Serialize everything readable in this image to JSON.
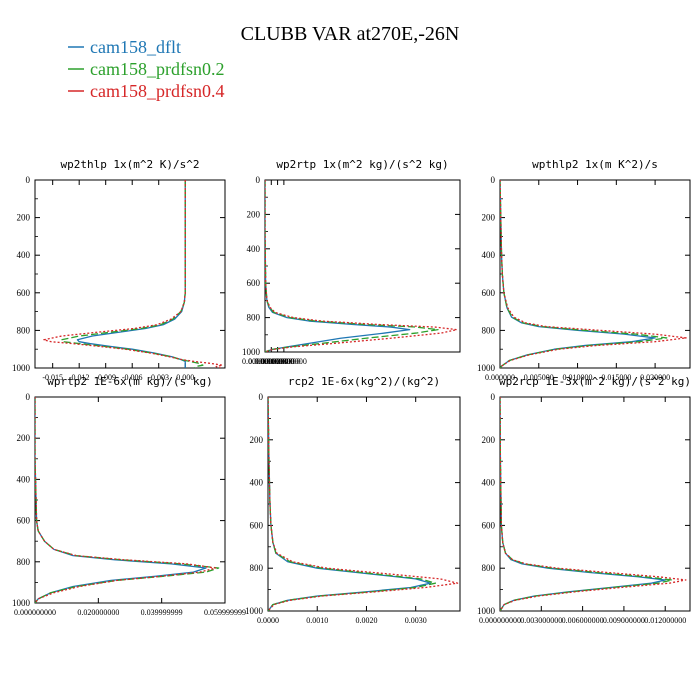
{
  "title": "CLUBB VAR at270E,-26N",
  "legend": [
    {
      "name": "cam158_dflt",
      "color": "#1f77b4",
      "dash": "solid"
    },
    {
      "name": "cam158_prdfsn0.2",
      "color": "#2ca02c",
      "dash": "dashed"
    },
    {
      "name": "cam158_prdfsn0.4",
      "color": "#d62728",
      "dash": "dotted"
    }
  ],
  "chart_data": [
    {
      "type": "line",
      "title": "wp2thlp  1x(m^2 K)/s^2",
      "xlim": [
        -0.017,
        0.0045
      ],
      "ylim": [
        1000,
        0
      ],
      "xticks": [
        "-0.015",
        "-0.012",
        "-0.009",
        "-0.006",
        "-0.003",
        "0.000"
      ],
      "xtick_values": [
        -0.015,
        -0.012,
        -0.009,
        -0.006,
        -0.003,
        0.0
      ],
      "yticks": [
        "0",
        "200",
        "400",
        "600",
        "800",
        "1000"
      ],
      "ytick_values": [
        0,
        200,
        400,
        600,
        800,
        1000
      ],
      "y": [
        0,
        300,
        600,
        650,
        700,
        740,
        770,
        790,
        810,
        830,
        850,
        860,
        870,
        885,
        900,
        920,
        940,
        955,
        965,
        975,
        985,
        992,
        1000
      ],
      "series": [
        {
          "name": "cam158_dflt",
          "values": [
            0,
            0,
            0,
            -0.0001,
            -0.0004,
            -0.0012,
            -0.0025,
            -0.0045,
            -0.0075,
            -0.0105,
            -0.0122,
            -0.012,
            -0.0108,
            -0.0085,
            -0.006,
            -0.0035,
            -0.0015,
            -0.0005,
            0.0,
            0.0,
            0.0,
            0.0,
            0.0
          ]
        },
        {
          "name": "cam158_prdfsn0.2",
          "values": [
            0,
            0,
            0,
            -0.0001,
            -0.0005,
            -0.0014,
            -0.0028,
            -0.005,
            -0.0085,
            -0.012,
            -0.014,
            -0.0138,
            -0.012,
            -0.0092,
            -0.0065,
            -0.0038,
            -0.0016,
            -0.0005,
            0.0005,
            0.0015,
            0.002,
            0.0012,
            0.001
          ]
        },
        {
          "name": "cam158_prdfsn0.4",
          "values": [
            0,
            0,
            0,
            -0.0001,
            -0.0005,
            -0.0016,
            -0.0032,
            -0.0058,
            -0.01,
            -0.014,
            -0.016,
            -0.0152,
            -0.0128,
            -0.0097,
            -0.0068,
            -0.004,
            -0.0018,
            -0.0004,
            0.001,
            0.0028,
            0.0042,
            0.0035,
            0.004
          ]
        }
      ]
    },
    {
      "type": "line",
      "title": "wp2rtp  1x(m^2 kg)/(s^2 kg)",
      "xlim": [
        0,
        0.00031
      ],
      "ylim": [
        1000,
        0
      ],
      "xticks": [
        "0.0000000000",
        "0.0000100000",
        "0.0000200000",
        "0.0000300000"
      ],
      "xtick_values": [
        0,
        1e-05,
        2e-05,
        3e-05
      ],
      "yticks": [
        "0",
        "200",
        "400",
        "600",
        "800",
        "1000"
      ],
      "ytick_values": [
        0,
        200,
        400,
        600,
        800,
        1000
      ],
      "y": [
        0,
        300,
        600,
        700,
        740,
        770,
        800,
        820,
        840,
        855,
        870,
        890,
        920,
        950,
        970,
        985,
        1000
      ],
      "series": [
        {
          "name": "cam158_dflt",
          "values": [
            0,
            0,
            1e-06,
            3e-06,
            6e-06,
            1.2e-05,
            3.5e-05,
            7e-05,
            0.00014,
            0.0002,
            0.00023,
            0.00019,
            0.00012,
            7e-05,
            3.5e-05,
            1.2e-05,
            0.0
          ]
        },
        {
          "name": "cam158_prdfsn0.2",
          "values": [
            0,
            0,
            1e-06,
            3e-06,
            7e-06,
            1.4e-05,
            4e-05,
            8e-05,
            0.00016,
            0.00024,
            0.000275,
            0.00024,
            0.00016,
            9e-05,
            4e-05,
            1e-05,
            0.0
          ]
        },
        {
          "name": "cam158_prdfsn0.4",
          "values": [
            0,
            0,
            1e-06,
            3e-06,
            8e-06,
            1.6e-05,
            4.5e-05,
            9e-05,
            0.00018,
            0.00027,
            0.000305,
            0.00028,
            0.0002,
            0.00011,
            4.5e-05,
            1.2e-05,
            0.0
          ]
        }
      ]
    },
    {
      "type": "line",
      "title": "wpthlp2  1x(m K^2)/s",
      "xlim": [
        0,
        0.0245
      ],
      "ylim": [
        1000,
        0
      ],
      "xticks": [
        "0.000000",
        "0.005000",
        "0.010000",
        "0.015000",
        "0.020000"
      ],
      "xtick_values": [
        0,
        0.005,
        0.01,
        0.015,
        0.02
      ],
      "yticks": [
        "0",
        "200",
        "400",
        "600",
        "800",
        "1000"
      ],
      "ytick_values": [
        0,
        200,
        400,
        600,
        800,
        1000
      ],
      "y": [
        0,
        200,
        400,
        500,
        600,
        680,
        730,
        760,
        780,
        800,
        820,
        840,
        860,
        880,
        900,
        930,
        960,
        990,
        1000
      ],
      "series": [
        {
          "name": "cam158_dflt",
          "values": [
            0.0,
            0.0001,
            0.0002,
            0.0003,
            0.0005,
            0.0009,
            0.0015,
            0.0028,
            0.005,
            0.01,
            0.016,
            0.02,
            0.017,
            0.011,
            0.007,
            0.0035,
            0.0012,
            0.0002,
            0.0
          ]
        },
        {
          "name": "cam158_prdfsn0.2",
          "values": [
            0.0,
            0.0001,
            0.0002,
            0.0003,
            0.0005,
            0.0009,
            0.0016,
            0.003,
            0.0055,
            0.011,
            0.0175,
            0.0215,
            0.018,
            0.0115,
            0.0072,
            0.0036,
            0.0012,
            0.0002,
            0.0
          ]
        },
        {
          "name": "cam158_prdfsn0.4",
          "values": [
            0.0,
            0.0001,
            0.0002,
            0.0003,
            0.0005,
            0.001,
            0.0018,
            0.0033,
            0.006,
            0.013,
            0.02,
            0.024,
            0.02,
            0.0125,
            0.0076,
            0.0038,
            0.0013,
            0.0002,
            0.0
          ]
        }
      ]
    },
    {
      "type": "line",
      "title": "wprtp2  1E-6x(m kg)/(s kg)",
      "xlim": [
        0,
        0.06
      ],
      "ylim": [
        1000,
        0
      ],
      "xticks": [
        "0.000000000",
        "0.020000000",
        "0.039999999",
        "0.059999999"
      ],
      "xtick_values": [
        0,
        0.02,
        0.04,
        0.06
      ],
      "yticks": [
        "0",
        "200",
        "400",
        "600",
        "800",
        "1000"
      ],
      "ytick_values": [
        0,
        200,
        400,
        600,
        800,
        1000
      ],
      "y": [
        0,
        300,
        600,
        650,
        700,
        740,
        770,
        790,
        810,
        830,
        850,
        870,
        890,
        920,
        950,
        980,
        1000
      ],
      "series": [
        {
          "name": "cam158_dflt",
          "values": [
            0,
            0,
            0.0005,
            0.001,
            0.003,
            0.006,
            0.012,
            0.025,
            0.043,
            0.054,
            0.05,
            0.038,
            0.024,
            0.012,
            0.005,
            0.001,
            0.0
          ]
        },
        {
          "name": "cam158_prdfsn0.2",
          "values": [
            0,
            0,
            0.0005,
            0.001,
            0.003,
            0.006,
            0.013,
            0.027,
            0.046,
            0.058,
            0.054,
            0.041,
            0.026,
            0.013,
            0.005,
            0.001,
            0.0
          ]
        },
        {
          "name": "cam158_prdfsn0.4",
          "values": [
            0,
            0,
            0.0005,
            0.001,
            0.003,
            0.006,
            0.013,
            0.028,
            0.048,
            0.057,
            0.052,
            0.04,
            0.026,
            0.014,
            0.006,
            0.001,
            0.0
          ]
        }
      ]
    },
    {
      "type": "line",
      "title": "rcp2  1E-6x(kg^2)/(kg^2)",
      "xlim": [
        0,
        0.0039
      ],
      "ylim": [
        1000,
        0
      ],
      "xticks": [
        "0.0000",
        "0.0010",
        "0.0020",
        "0.0030"
      ],
      "xtick_values": [
        0,
        0.001,
        0.002,
        0.003
      ],
      "yticks": [
        "0",
        "200",
        "400",
        "600",
        "800",
        "1000"
      ],
      "ytick_values": [
        0,
        200,
        400,
        600,
        800,
        1000
      ],
      "y": [
        0,
        300,
        500,
        600,
        680,
        730,
        770,
        800,
        830,
        850,
        870,
        890,
        910,
        930,
        950,
        970,
        1000
      ],
      "series": [
        {
          "name": "cam158_dflt",
          "values": [
            0,
            2e-05,
            4e-05,
            6e-05,
            0.0001,
            0.00016,
            0.0004,
            0.001,
            0.0022,
            0.003,
            0.0033,
            0.0029,
            0.002,
            0.001,
            0.0004,
            0.0001,
            0.0
          ]
        },
        {
          "name": "cam158_prdfsn0.2",
          "values": [
            0,
            2e-05,
            4e-05,
            6e-05,
            0.0001,
            0.00016,
            0.00045,
            0.0011,
            0.0023,
            0.0031,
            0.0034,
            0.003,
            0.0021,
            0.00105,
            0.0004,
            0.0001,
            0.0
          ]
        },
        {
          "name": "cam158_prdfsn0.4",
          "values": [
            0,
            2e-05,
            4e-05,
            6e-05,
            0.0001,
            0.00018,
            0.0005,
            0.0012,
            0.0026,
            0.0035,
            0.00385,
            0.0032,
            0.0022,
            0.0011,
            0.00045,
            0.00012,
            0.0
          ]
        }
      ]
    },
    {
      "type": "line",
      "title": "wp2rcp  1E-3x(m^2 kg)/(s^2 kg)",
      "xlim": [
        0,
        0.0138
      ],
      "ylim": [
        1000,
        0
      ],
      "xticks": [
        "0.000000000",
        "0.003000000",
        "0.006000000",
        "0.009000000",
        "0.012000000"
      ],
      "xtick_values": [
        0,
        0.003,
        0.006,
        0.009,
        0.012
      ],
      "yticks": [
        "0",
        "200",
        "400",
        "600",
        "800",
        "1000"
      ],
      "ytick_values": [
        0,
        200,
        400,
        600,
        800,
        1000
      ],
      "y": [
        0,
        300,
        600,
        680,
        730,
        760,
        780,
        800,
        820,
        840,
        855,
        870,
        890,
        910,
        930,
        950,
        970,
        1000
      ],
      "series": [
        {
          "name": "cam158_dflt",
          "values": [
            0,
            3e-05,
            0.0001,
            0.0002,
            0.0004,
            0.0008,
            0.0016,
            0.0035,
            0.0065,
            0.01,
            0.012,
            0.011,
            0.008,
            0.005,
            0.0025,
            0.001,
            0.0003,
            0.0
          ]
        },
        {
          "name": "cam158_prdfsn0.2",
          "values": [
            0,
            3e-05,
            0.0001,
            0.0002,
            0.0004,
            0.0009,
            0.0018,
            0.0038,
            0.007,
            0.0105,
            0.0125,
            0.0115,
            0.0082,
            0.0052,
            0.0026,
            0.001,
            0.0003,
            0.0
          ]
        },
        {
          "name": "cam158_prdfsn0.4",
          "values": [
            0,
            3e-05,
            0.0001,
            0.0002,
            0.0004,
            0.0009,
            0.0019,
            0.0042,
            0.0078,
            0.0115,
            0.0135,
            0.0123,
            0.0088,
            0.0055,
            0.0028,
            0.0011,
            0.0003,
            0.0
          ]
        }
      ]
    }
  ]
}
